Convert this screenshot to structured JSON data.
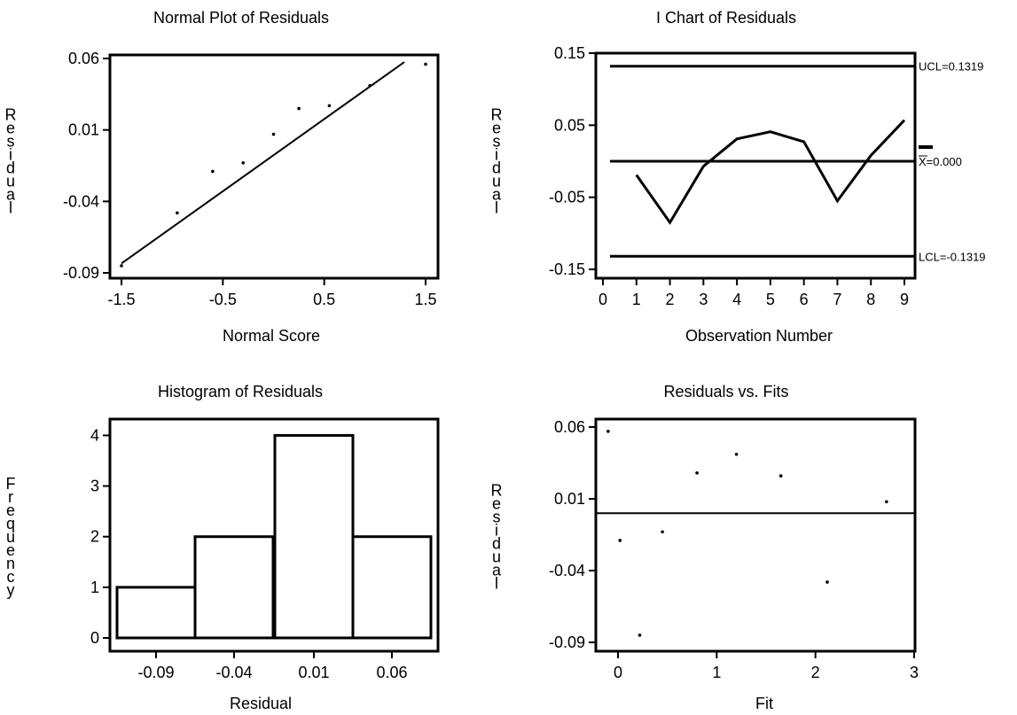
{
  "chart_data": [
    {
      "type": "scatter",
      "title": "Normal Plot of Residuals",
      "xlabel": "Normal Score",
      "ylabel": "Residual",
      "xlim": [
        -1.5,
        1.5
      ],
      "ylim": [
        -0.09,
        0.06
      ],
      "xticks": [
        "-1.5",
        "-0.5",
        "0.5",
        "1.5"
      ],
      "yticks": [
        "0.06",
        "0.01",
        "-0.04",
        "-0.09"
      ],
      "grid": false,
      "points": [
        {
          "x": -1.5,
          "y": -0.085
        },
        {
          "x": -0.95,
          "y": -0.048
        },
        {
          "x": -0.6,
          "y": -0.019
        },
        {
          "x": -0.3,
          "y": -0.013
        },
        {
          "x": 0.0,
          "y": 0.007
        },
        {
          "x": 0.25,
          "y": 0.025
        },
        {
          "x": 0.55,
          "y": 0.027
        },
        {
          "x": 0.95,
          "y": 0.041
        },
        {
          "x": 1.5,
          "y": 0.056
        }
      ],
      "fit_line": [
        {
          "x": -1.5,
          "y": -0.0834
        },
        {
          "x": 1.29,
          "y": 0.0575
        }
      ]
    },
    {
      "type": "line",
      "title": "I Chart of Residuals",
      "xlabel": "Observation Number",
      "ylabel": "Residual",
      "xlim": [
        0,
        9
      ],
      "ylim": [
        -0.15,
        0.15
      ],
      "xticks": [
        "0",
        "1",
        "2",
        "3",
        "4",
        "5",
        "6",
        "7",
        "8",
        "9"
      ],
      "yticks": [
        "0.15",
        "0.05",
        "-0.05",
        "-0.15"
      ],
      "grid": false,
      "x": [
        1,
        2,
        3,
        4,
        5,
        6,
        7,
        8,
        9
      ],
      "y": [
        -0.019,
        -0.085,
        -0.007,
        0.031,
        0.041,
        0.027,
        -0.055,
        0.008,
        0.057
      ],
      "reference_lines": [
        {
          "label": "UCL=0.1319",
          "value": 0.1319
        },
        {
          "label": "X=0.000",
          "value": 0.0
        },
        {
          "label": "LCL=-0.1319",
          "value": -0.1319
        }
      ]
    },
    {
      "type": "bar",
      "title": "Histogram of Residuals",
      "xlabel": "Residual",
      "ylabel": "Frequency",
      "categories": [
        "-0.09",
        "-0.04",
        "0.01",
        "0.06"
      ],
      "values": [
        1,
        2,
        4,
        2
      ],
      "ylim": [
        0,
        4.2
      ],
      "yticks": [
        "4",
        "3",
        "2",
        "1",
        "0"
      ],
      "grid": false
    },
    {
      "type": "scatter",
      "title": "Residuals vs. Fits",
      "xlabel": "Fit",
      "ylabel": "Residual",
      "xlim": [
        0,
        3
      ],
      "ylim": [
        -0.09,
        0.06
      ],
      "xticks": [
        "0",
        "1",
        "2",
        "3"
      ],
      "yticks": [
        "0.06",
        "0.01",
        "-0.04",
        "-0.09"
      ],
      "grid": false,
      "points": [
        {
          "x": -0.1,
          "y": 0.057
        },
        {
          "x": 0.8,
          "y": 0.028
        },
        {
          "x": 1.2,
          "y": 0.041
        },
        {
          "x": 1.65,
          "y": 0.026
        },
        {
          "x": 2.72,
          "y": 0.008
        },
        {
          "x": 0.02,
          "y": -0.019
        },
        {
          "x": 0.45,
          "y": -0.013
        },
        {
          "x": 2.12,
          "y": -0.048
        },
        {
          "x": 0.22,
          "y": -0.085
        }
      ],
      "reference_lines": [
        {
          "value": 0.0
        }
      ]
    }
  ]
}
